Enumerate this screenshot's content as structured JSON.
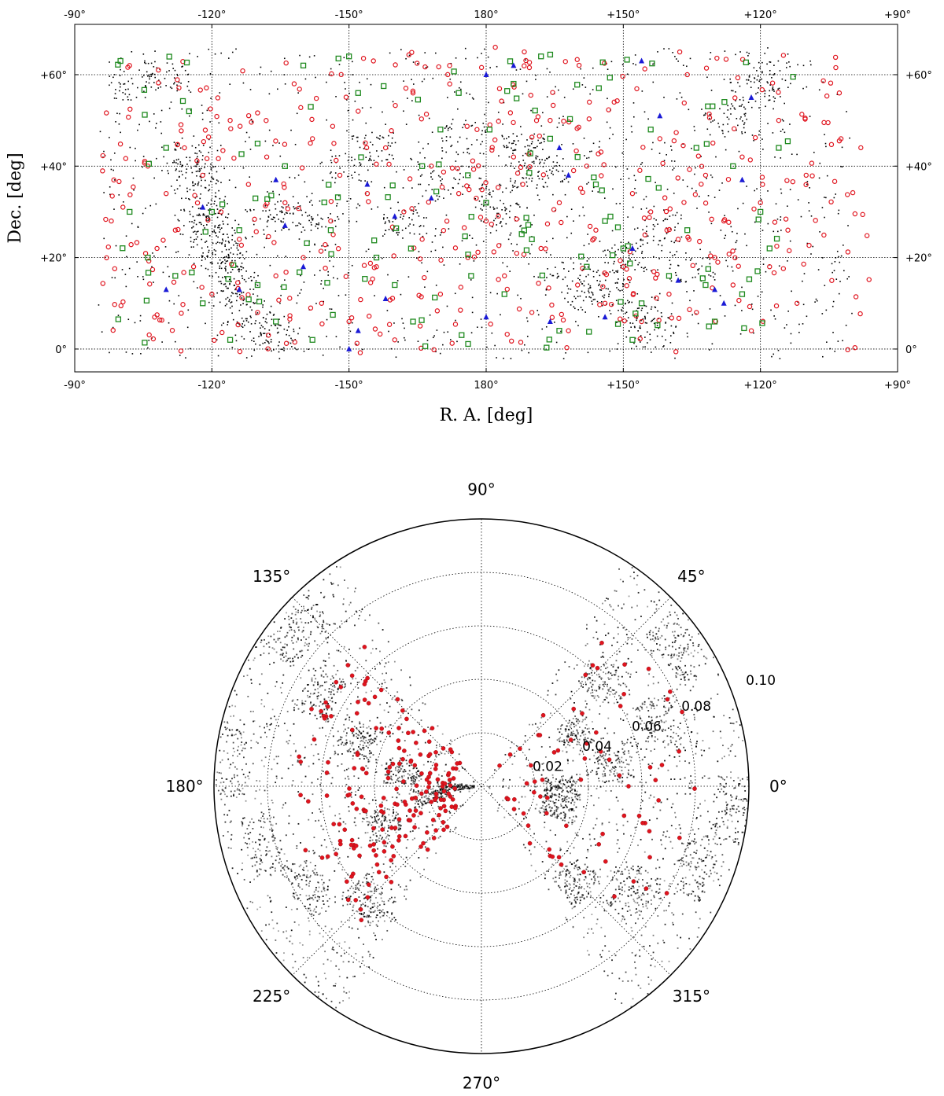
{
  "colors": {
    "background": "#ffffff",
    "frame": "#000000",
    "gridline": "#000000",
    "galaxy_points": "#000000",
    "red_circles": "#e0141e",
    "green_squares": "#1f8a1f",
    "blue_triangles": "#1a1ad6"
  },
  "chart_data": [
    {
      "type": "scatter",
      "title": "",
      "xlabel": "R. A. [deg]",
      "ylabel": "Dec. [deg]",
      "grid": true,
      "x_ticks_top": [
        "-90°",
        "-120°",
        "-150°",
        "180°",
        "+150°",
        "+120°",
        "+90°"
      ],
      "x_ticks_bottom": [
        "-90°",
        "-120°",
        "-150°",
        "180°",
        "+150°",
        "+120°",
        "+90°"
      ],
      "y_ticks_left": [
        "0°",
        "+20°",
        "+40°",
        "+60°"
      ],
      "y_ticks_right": [
        "0°",
        "+20°",
        "+40°",
        "+60°"
      ],
      "xlim": [
        -90,
        90
      ],
      "ylim": [
        -5,
        71
      ],
      "x_note": "R.A. offset relative to 180°: -90 at left edge, 0 = 180°, +90 at right edge",
      "series": [
        {
          "marker": "dot",
          "color": "#000000",
          "description_points": [
            [
              -65,
              42
            ],
            [
              -64,
              38
            ],
            [
              -63,
              36
            ],
            [
              -61,
              30
            ],
            [
              -60,
              25
            ],
            [
              -58,
              19
            ],
            [
              -57,
              17
            ],
            [
              -55,
              13
            ],
            [
              -52,
              8
            ],
            [
              -50,
              5
            ],
            [
              -46,
              3
            ],
            [
              -62,
              28
            ],
            [
              -59,
              22
            ],
            [
              -48,
              28
            ],
            [
              -43,
              30
            ],
            [
              -38,
              26
            ],
            [
              -30,
              40
            ],
            [
              -25,
              44
            ],
            [
              -18,
              28
            ],
            [
              -10,
              36
            ],
            [
              -5,
              46
            ],
            [
              2,
              34
            ],
            [
              6,
              28
            ],
            [
              8,
              44
            ],
            [
              10,
              38
            ],
            [
              13,
              40
            ],
            [
              18,
              16
            ],
            [
              22,
              10
            ],
            [
              25,
              14
            ],
            [
              30,
              20
            ],
            [
              33,
              8
            ],
            [
              36,
              4
            ],
            [
              38,
              26
            ],
            [
              45,
              18
            ],
            [
              52,
              50
            ],
            [
              58,
              56
            ],
            [
              62,
              60
            ],
            [
              -78,
              58
            ],
            [
              -70,
              60
            ]
          ]
        },
        {
          "marker": "open-circle",
          "color": "#e0141e",
          "points": [
            [
              -82,
              28
            ],
            [
              -78,
              62
            ],
            [
              -74,
              40
            ],
            [
              -72,
              22
            ],
            [
              -70,
              34
            ],
            [
              -68,
              26
            ],
            [
              -66,
              44
            ],
            [
              -64,
              18
            ],
            [
              -62,
              38
            ],
            [
              -60,
              12
            ],
            [
              -58,
              30
            ],
            [
              -56,
              50
            ],
            [
              -54,
              24
            ],
            [
              -52,
              36
            ],
            [
              -50,
              8
            ],
            [
              -48,
              42
            ],
            [
              -46,
              16
            ],
            [
              -44,
              32
            ],
            [
              -42,
              58
            ],
            [
              -40,
              20
            ],
            [
              -38,
              46
            ],
            [
              -36,
              10
            ],
            [
              -34,
              28
            ],
            [
              -32,
              38
            ],
            [
              -30,
              6
            ],
            [
              -28,
              52
            ],
            [
              -26,
              34
            ],
            [
              -24,
              18
            ],
            [
              -22,
              44
            ],
            [
              -20,
              2
            ],
            [
              -18,
              30
            ],
            [
              -16,
              56
            ],
            [
              -14,
              24
            ],
            [
              -12,
              40
            ],
            [
              -10,
              12
            ],
            [
              -8,
              62
            ],
            [
              -6,
              34
            ],
            [
              -4,
              20
            ],
            [
              -2,
              48
            ],
            [
              0,
              28
            ],
            [
              2,
              66
            ],
            [
              4,
              16
            ],
            [
              6,
              42
            ],
            [
              8,
              36
            ],
            [
              10,
              8
            ],
            [
              12,
              22
            ],
            [
              14,
              50
            ],
            [
              16,
              32
            ],
            [
              18,
              4
            ],
            [
              20,
              14
            ],
            [
              22,
              40
            ],
            [
              24,
              26
            ],
            [
              26,
              10
            ],
            [
              28,
              54
            ],
            [
              30,
              18
            ],
            [
              32,
              34
            ],
            [
              34,
              6
            ],
            [
              36,
              30
            ],
            [
              38,
              46
            ],
            [
              40,
              12
            ],
            [
              42,
              24
            ],
            [
              44,
              60
            ],
            [
              46,
              8
            ],
            [
              48,
              38
            ],
            [
              50,
              20
            ],
            [
              52,
              28
            ],
            [
              54,
              14
            ],
            [
              56,
              42
            ],
            [
              58,
              4
            ],
            [
              60,
              32
            ],
            [
              62,
              18
            ],
            [
              64,
              50
            ],
            [
              66,
              26
            ],
            [
              68,
              10
            ],
            [
              70,
              38
            ]
          ]
        },
        {
          "marker": "open-square",
          "color": "#1f8a1f",
          "points": [
            [
              -80,
              63
            ],
            [
              -78,
              30
            ],
            [
              -74,
              20
            ],
            [
              -70,
              44
            ],
            [
              -68,
              16
            ],
            [
              -65,
              52
            ],
            [
              -62,
              10
            ],
            [
              -60,
              30
            ],
            [
              -56,
              2
            ],
            [
              -54,
              26
            ],
            [
              -50,
              14
            ],
            [
              -46,
              6
            ],
            [
              -44,
              40
            ],
            [
              -40,
              62
            ],
            [
              -38,
              2
            ],
            [
              -34,
              26
            ],
            [
              -30,
              64
            ],
            [
              -28,
              56
            ],
            [
              -24,
              20
            ],
            [
              -20,
              14
            ],
            [
              -16,
              6
            ],
            [
              -14,
              40
            ],
            [
              -10,
              48
            ],
            [
              -6,
              56
            ],
            [
              -4,
              38
            ],
            [
              0,
              32
            ],
            [
              4,
              12
            ],
            [
              6,
              58
            ],
            [
              10,
              24
            ],
            [
              12,
              64
            ],
            [
              14,
              46
            ],
            [
              16,
              4
            ],
            [
              20,
              42
            ],
            [
              22,
              18
            ],
            [
              24,
              36
            ],
            [
              26,
              28
            ],
            [
              30,
              22
            ],
            [
              32,
              2
            ],
            [
              34,
              10
            ],
            [
              36,
              48
            ],
            [
              40,
              16
            ],
            [
              44,
              26
            ],
            [
              46,
              44
            ],
            [
              48,
              14
            ],
            [
              50,
              6
            ],
            [
              54,
              40
            ],
            [
              56,
              12
            ],
            [
              60,
              30
            ],
            [
              62,
              22
            ],
            [
              64,
              44
            ]
          ]
        },
        {
          "marker": "filled-triangle",
          "color": "#1a1ad6",
          "points": [
            [
              -70,
              13
            ],
            [
              -62,
              31
            ],
            [
              -54,
              13
            ],
            [
              -46,
              37
            ],
            [
              -44,
              27
            ],
            [
              -40,
              18
            ],
            [
              -30,
              0
            ],
            [
              -28,
              4
            ],
            [
              -26,
              36
            ],
            [
              -22,
              11
            ],
            [
              -20,
              29
            ],
            [
              -12,
              33
            ],
            [
              0,
              7
            ],
            [
              0,
              60
            ],
            [
              6,
              62
            ],
            [
              14,
              6
            ],
            [
              16,
              44
            ],
            [
              18,
              38
            ],
            [
              26,
              7
            ],
            [
              32,
              22
            ],
            [
              34,
              63
            ],
            [
              38,
              51
            ],
            [
              42,
              15
            ],
            [
              50,
              13
            ],
            [
              52,
              10
            ],
            [
              56,
              37
            ],
            [
              58,
              55
            ]
          ]
        }
      ]
    },
    {
      "type": "scatter",
      "title": "",
      "projection": "polar",
      "angle_ticks": [
        "90°",
        "45°",
        "0°",
        "315°",
        "270°",
        "225°",
        "180°",
        "135°"
      ],
      "radial_ticks": [
        "0.02",
        "0.04",
        "0.06",
        "0.08",
        "0.10"
      ],
      "rlim": [
        0,
        0.1
      ],
      "grid": true,
      "series": [
        {
          "marker": "dot",
          "color": "#000000",
          "sectors_deg": [
            [
              122,
              238
            ],
            [
              302,
              418
            ]
          ],
          "description_points": [
            [
              0.01,
              180
            ],
            [
              0.03,
              170
            ],
            [
              0.05,
              160
            ],
            [
              0.07,
              150
            ],
            [
              0.09,
              140
            ],
            [
              0.095,
              175
            ],
            [
              0.085,
              195
            ],
            [
              0.075,
              210
            ],
            [
              0.06,
              225
            ],
            [
              0.04,
              200
            ],
            [
              0.02,
              190
            ],
            [
              0.03,
              0
            ],
            [
              0.05,
              10
            ],
            [
              0.07,
              20
            ],
            [
              0.09,
              35
            ],
            [
              0.095,
              355
            ],
            [
              0.085,
              340
            ],
            [
              0.07,
              325
            ],
            [
              0.05,
              315
            ],
            [
              0.03,
              345
            ],
            [
              0.04,
              30
            ],
            [
              0.06,
              40
            ]
          ]
        },
        {
          "marker": "filled-circle",
          "color": "#e0141e",
          "points": [
            [
              0.01,
              185
            ],
            [
              0.015,
              200
            ],
            [
              0.02,
              170
            ],
            [
              0.022,
              215
            ],
            [
              0.025,
              190
            ],
            [
              0.028,
              160
            ],
            [
              0.03,
              205
            ],
            [
              0.032,
              225
            ],
            [
              0.035,
              175
            ],
            [
              0.038,
              195
            ],
            [
              0.04,
              150
            ],
            [
              0.042,
              210
            ],
            [
              0.045,
              185
            ],
            [
              0.048,
              165
            ],
            [
              0.05,
              220
            ],
            [
              0.052,
              140
            ],
            [
              0.055,
              195
            ],
            [
              0.058,
              175
            ],
            [
              0.06,
              205
            ],
            [
              0.062,
              155
            ],
            [
              0.065,
              185
            ],
            [
              0.068,
              130
            ],
            [
              0.07,
              200
            ],
            [
              0.02,
              5
            ],
            [
              0.025,
              350
            ],
            [
              0.03,
              25
            ],
            [
              0.035,
              335
            ],
            [
              0.04,
              15
            ],
            [
              0.045,
              40
            ],
            [
              0.05,
              320
            ],
            [
              0.055,
              0
            ],
            [
              0.06,
              30
            ],
            [
              0.065,
              345
            ],
            [
              0.07,
              50
            ],
            [
              0.075,
              10
            ],
            [
              0.08,
              330
            ]
          ]
        }
      ]
    }
  ]
}
